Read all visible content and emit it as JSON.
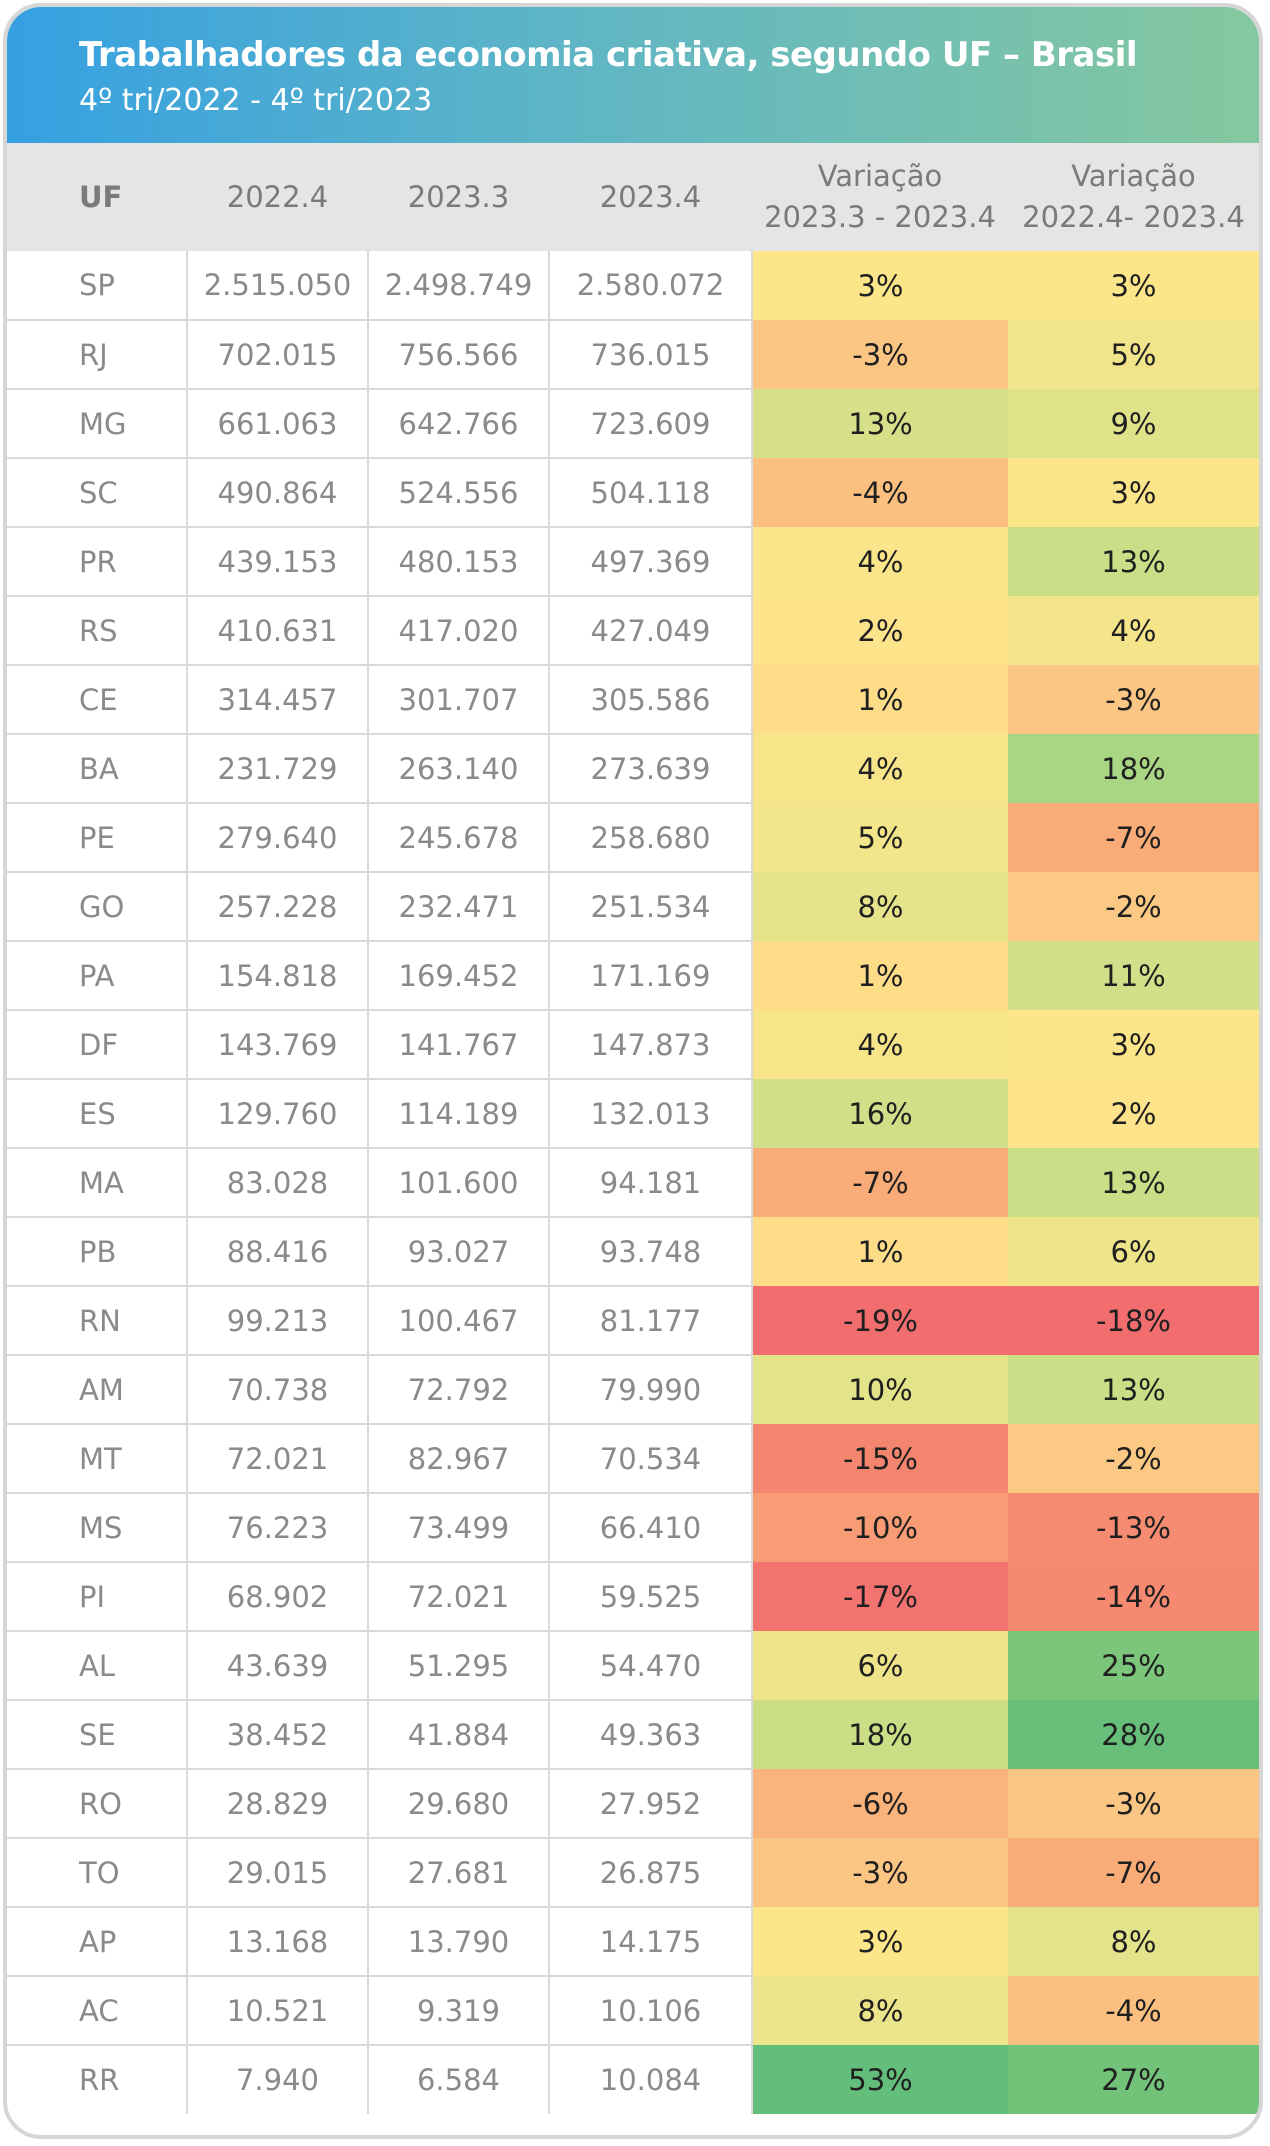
{
  "header": {
    "title": "Trabalhadores da economia criativa, segundo UF – Brasil",
    "subtitle": "4º tri/2022 - 4º tri/2023"
  },
  "columns": {
    "uf": "UF",
    "c1": "2022.4",
    "c2": "2023.3",
    "c3": "2023.4",
    "v1_line1": "Variação",
    "v1_line2": "2023.3 - 2023.4",
    "v2_line1": "Variação",
    "v2_line2": "2022.4- 2023.4"
  },
  "rows": [
    {
      "uf": "SP",
      "c1": "2.515.050",
      "c2": "2.498.749",
      "c3": "2.580.072",
      "v1": "3%",
      "v2": "3%",
      "v1_color": "#fde58a",
      "v2_color": "#fde58a"
    },
    {
      "uf": "RJ",
      "c1": "702.015",
      "c2": "756.566",
      "c3": "736.015",
      "v1": "-3%",
      "v2": "5%",
      "v1_color": "#fbc683",
      "v2_color": "#f2e48a"
    },
    {
      "uf": "MG",
      "c1": "661.063",
      "c2": "642.766",
      "c3": "723.609",
      "v1": "13%",
      "v2": "9%",
      "v1_color": "#d6e089",
      "v2_color": "#e0e28a"
    },
    {
      "uf": "SC",
      "c1": "490.864",
      "c2": "524.556",
      "c3": "504.118",
      "v1": "-4%",
      "v2": "3%",
      "v1_color": "#fbbf80",
      "v2_color": "#fde58a"
    },
    {
      "uf": "PR",
      "c1": "439.153",
      "c2": "480.153",
      "c3": "497.369",
      "v1": "4%",
      "v2": "13%",
      "v1_color": "#fbe58a",
      "v2_color": "#c9de86"
    },
    {
      "uf": "RS",
      "c1": "410.631",
      "c2": "417.020",
      "c3": "427.049",
      "v1": "2%",
      "v2": "4%",
      "v1_color": "#fde38a",
      "v2_color": "#f5e58a"
    },
    {
      "uf": "CE",
      "c1": "314.457",
      "c2": "301.707",
      "c3": "305.586",
      "v1": "1%",
      "v2": "-3%",
      "v1_color": "#fddd88",
      "v2_color": "#fbc683"
    },
    {
      "uf": "BA",
      "c1": "231.729",
      "c2": "263.140",
      "c3": "273.639",
      "v1": "4%",
      "v2": "18%",
      "v1_color": "#f8e58a",
      "v2_color": "#a9d682"
    },
    {
      "uf": "PE",
      "c1": "279.640",
      "c2": "245.678",
      "c3": "258.680",
      "v1": "5%",
      "v2": "-7%",
      "v1_color": "#f3e58a",
      "v2_color": "#f9ab78"
    },
    {
      "uf": "GO",
      "c1": "257.228",
      "c2": "232.471",
      "c3": "251.534",
      "v1": "8%",
      "v2": "-2%",
      "v1_color": "#e6e38a",
      "v2_color": "#fbc984"
    },
    {
      "uf": "PA",
      "c1": "154.818",
      "c2": "169.452",
      "c3": "171.169",
      "v1": "1%",
      "v2": "11%",
      "v1_color": "#fddd88",
      "v2_color": "#d3df88"
    },
    {
      "uf": "DF",
      "c1": "143.769",
      "c2": "141.767",
      "c3": "147.873",
      "v1": "4%",
      "v2": "3%",
      "v1_color": "#f8e58a",
      "v2_color": "#fde58a"
    },
    {
      "uf": "ES",
      "c1": "129.760",
      "c2": "114.189",
      "c3": "132.013",
      "v1": "16%",
      "v2": "2%",
      "v1_color": "#d2df88",
      "v2_color": "#fde38a"
    },
    {
      "uf": "MA",
      "c1": "83.028",
      "c2": "101.600",
      "c3": "94.181",
      "v1": "-7%",
      "v2": "13%",
      "v1_color": "#f9ab78",
      "v2_color": "#c9de86"
    },
    {
      "uf": "PB",
      "c1": "88.416",
      "c2": "93.027",
      "c3": "93.748",
      "v1": "1%",
      "v2": "6%",
      "v1_color": "#fddd88",
      "v2_color": "#eee48a"
    },
    {
      "uf": "RN",
      "c1": "99.213",
      "c2": "100.467",
      "c3": "81.177",
      "v1": "-19%",
      "v2": "-18%",
      "v1_color": "#f16d6e",
      "v2_color": "#f16d6e"
    },
    {
      "uf": "AM",
      "c1": "70.738",
      "c2": "72.792",
      "c3": "79.990",
      "v1": "10%",
      "v2": "13%",
      "v1_color": "#e3e38a",
      "v2_color": "#c9de86"
    },
    {
      "uf": "MT",
      "c1": "72.021",
      "c2": "82.967",
      "c3": "70.534",
      "v1": "-15%",
      "v2": "-2%",
      "v1_color": "#f4866f",
      "v2_color": "#fbc984"
    },
    {
      "uf": "MS",
      "c1": "76.223",
      "c2": "73.499",
      "c3": "66.410",
      "v1": "-10%",
      "v2": "-13%",
      "v1_color": "#f79c75",
      "v2_color": "#f58c72"
    },
    {
      "uf": "PI",
      "c1": "68.902",
      "c2": "72.021",
      "c3": "59.525",
      "v1": "-17%",
      "v2": "-14%",
      "v1_color": "#f2736f",
      "v2_color": "#f58a71"
    },
    {
      "uf": "AL",
      "c1": "43.639",
      "c2": "51.295",
      "c3": "54.470",
      "v1": "6%",
      "v2": "25%",
      "v1_color": "#efe48a",
      "v2_color": "#7cc67b"
    },
    {
      "uf": "SE",
      "c1": "38.452",
      "c2": "41.884",
      "c3": "49.363",
      "v1": "18%",
      "v2": "28%",
      "v1_color": "#cbde86",
      "v2_color": "#67bf79"
    },
    {
      "uf": "RO",
      "c1": "28.829",
      "c2": "29.680",
      "c3": "27.952",
      "v1": "-6%",
      "v2": "-3%",
      "v1_color": "#f9b37b",
      "v2_color": "#fbc683"
    },
    {
      "uf": "TO",
      "c1": "29.015",
      "c2": "27.681",
      "c3": "26.875",
      "v1": "-3%",
      "v2": "-7%",
      "v1_color": "#fbc683",
      "v2_color": "#f9ab78"
    },
    {
      "uf": "AP",
      "c1": "13.168",
      "c2": "13.790",
      "c3": "14.175",
      "v1": "3%",
      "v2": "8%",
      "v1_color": "#fde58a",
      "v2_color": "#e4e28a"
    },
    {
      "uf": "AC",
      "c1": "10.521",
      "c2": "9.319",
      "c3": "10.106",
      "v1": "8%",
      "v2": "-4%",
      "v1_color": "#ebe48a",
      "v2_color": "#fbc080"
    },
    {
      "uf": "RR",
      "c1": "7.940",
      "c2": "6.584",
      "c3": "10.084",
      "v1": "53%",
      "v2": "27%",
      "v1_color": "#63be7b",
      "v2_color": "#72c27a"
    }
  ]
}
